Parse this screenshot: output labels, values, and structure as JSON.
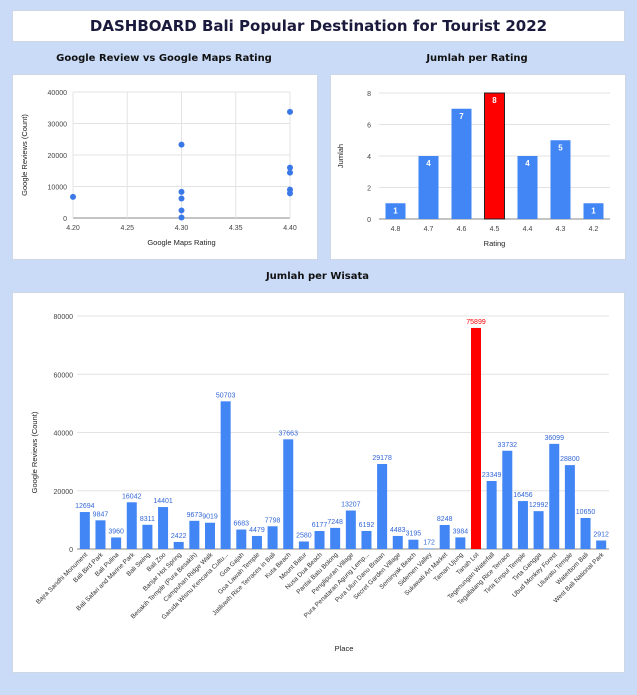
{
  "dashboard": {
    "title": "DASHBOARD Bali Popular Destination for Tourist 2022"
  },
  "sections": {
    "scatter_title": "Google Review vs Google Maps Rating",
    "rating_title": "Jumlah per Rating",
    "wisata_title": "Jumlah per Wisata"
  },
  "chart_data": [
    {
      "type": "scatter",
      "title": "",
      "xlabel": "Google Maps Rating",
      "ylabel": "Google Reviews (Count)",
      "xlim": [
        4.2,
        4.4
      ],
      "ylim": [
        0,
        40000
      ],
      "xticks": [
        "4.20",
        "4.25",
        "4.30",
        "4.35",
        "4.40"
      ],
      "yticks": [
        "0",
        "10000",
        "20000",
        "30000",
        "40000"
      ],
      "points": [
        {
          "x": 4.2,
          "y": 6700
        },
        {
          "x": 4.3,
          "y": 23300
        },
        {
          "x": 4.3,
          "y": 8300
        },
        {
          "x": 4.3,
          "y": 6200
        },
        {
          "x": 4.3,
          "y": 2400
        },
        {
          "x": 4.3,
          "y": 170
        },
        {
          "x": 4.4,
          "y": 33700
        },
        {
          "x": 4.4,
          "y": 16000
        },
        {
          "x": 4.4,
          "y": 14400
        },
        {
          "x": 4.4,
          "y": 9000
        },
        {
          "x": 4.4,
          "y": 7800
        }
      ],
      "color": "#3b78e7",
      "grid": true
    },
    {
      "type": "bar",
      "title": "",
      "xlabel": "Rating",
      "ylabel": "Jumlah",
      "categories": [
        "4.8",
        "4.7",
        "4.6",
        "4.5",
        "4.4",
        "4.3",
        "4.2"
      ],
      "values": [
        1,
        4,
        7,
        8,
        4,
        5,
        1
      ],
      "ylim": [
        0,
        8
      ],
      "yticks": [
        "0",
        "2",
        "4",
        "6",
        "8"
      ],
      "highlight_index": 3,
      "colors": {
        "bar": "#4285f4",
        "highlight": "#ff0000"
      },
      "grid": true
    },
    {
      "type": "bar",
      "title": "",
      "xlabel": "Place",
      "ylabel": "Google Reviews (Count)",
      "ylim": [
        0,
        80000
      ],
      "yticks": [
        "0",
        "20000",
        "40000",
        "60000",
        "80000"
      ],
      "categories": [
        "Bajra Sandhi Monument",
        "Bali Bird Park",
        "Bali Pulina",
        "Bali Safari and Marine Park",
        "Bali Swing",
        "Bali Zoo",
        "Banjar Hot Spring",
        "Besakih Temple (Pura Besakih)",
        "Campuhan Ridge Walk",
        "Garuda Wisnu Kencana Cultu...",
        "Goa Gajah",
        "Goa Lawah Temple",
        "Jatiluwih Rice Terraces in Bali",
        "Kuta Beach",
        "Mount Batur",
        "Nusa Dua Beach",
        "Pantai Batu Bolong",
        "Penglipuran Village",
        "Pura Penataran Agung Lemp...",
        "Pura Ulun Danu Bratan",
        "Secret Garden Village",
        "Seminyak Beach",
        "Sidemen Valley",
        "Sukawati Art Market",
        "Taman Ujung",
        "Tanah Lot",
        "Tegenungan Waterfall",
        "Tegallalang Rice Terrace",
        "Tirta Empul Temple",
        "Tirta Gangga",
        "Ubud Monkey Forest",
        "Uluwatu Temple",
        "Waterbom Bali",
        "West Bali National Park"
      ],
      "values": [
        12694,
        9847,
        3960,
        16042,
        8311,
        14401,
        2422,
        9673,
        9019,
        50703,
        6683,
        4479,
        7798,
        37663,
        2580,
        6177,
        7248,
        13207,
        6192,
        29178,
        4483,
        3195,
        172,
        8248,
        3984,
        75899,
        23349,
        33732,
        16456,
        12992,
        36099,
        28800,
        10650,
        2912
      ],
      "data_labels": [
        "12694",
        "9847",
        "3960",
        "16042",
        "8311",
        "14401",
        "2422",
        "9673",
        "9019",
        "50703",
        "6683",
        "4479",
        "7798",
        "37663",
        "2580",
        "6177",
        "7248",
        "13207",
        "6192",
        "29178",
        "4483",
        "3195",
        "172",
        "8248",
        "3984",
        "75899",
        "23349",
        "33732",
        "16456",
        "12992",
        "36099",
        "28800",
        "10650",
        "2912"
      ],
      "highlight_index": 25,
      "colors": {
        "bar": "#4285f4",
        "highlight": "#ff0000",
        "label": "#3367d6",
        "highlight_label": "#ff0000"
      },
      "grid": true
    }
  ]
}
